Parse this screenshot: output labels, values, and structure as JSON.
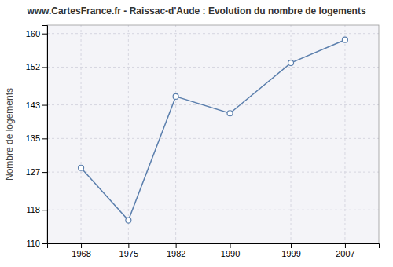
{
  "chart_data": {
    "type": "line",
    "title": "www.CartesFrance.fr - Raissac-d'Aude : Evolution du nombre de logements",
    "ylabel": "Nombre de logements",
    "x": [
      1968,
      1975,
      1982,
      1990,
      1999,
      2007
    ],
    "values": [
      128,
      115.5,
      145,
      141,
      153,
      158.5
    ],
    "color": "#5b7fad",
    "marker": "circle",
    "xlim": [
      1963,
      2012
    ],
    "ylim": [
      110,
      162
    ],
    "xticks": [
      1968,
      1975,
      1982,
      1990,
      1999,
      2007
    ],
    "yticks": [
      110,
      118,
      127,
      135,
      143,
      152,
      160
    ],
    "grid": true
  }
}
